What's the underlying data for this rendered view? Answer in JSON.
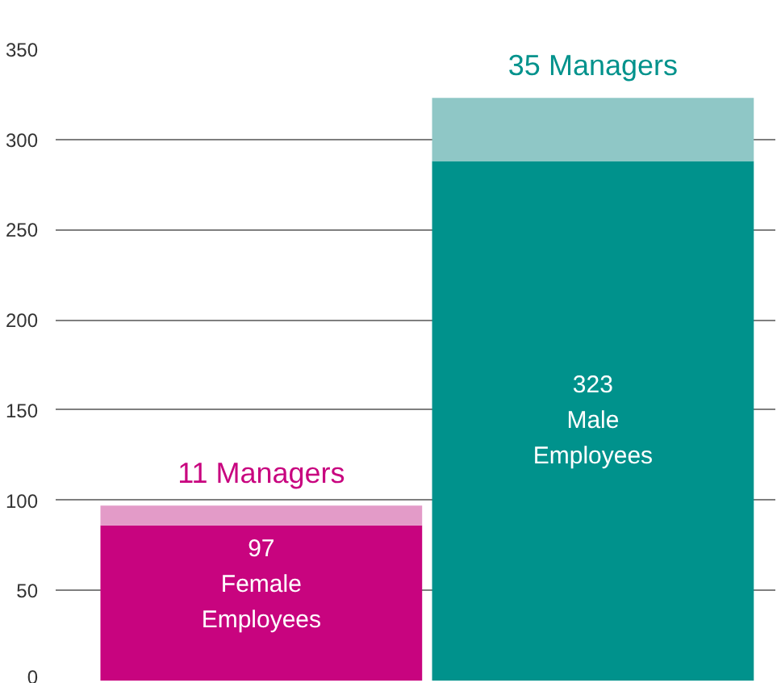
{
  "chart_data": {
    "type": "bar",
    "stacked": true,
    "categories": [
      "Female Employees",
      "Male Employees"
    ],
    "series": [
      {
        "colors": [
          "#c8047f",
          "#00928c"
        ],
        "values": [
          86,
          288
        ]
      },
      {
        "colors": [
          "#e39bc8",
          "#8fc7c6"
        ],
        "values": [
          11,
          35
        ],
        "value_labels": [
          "11 Managers",
          "35 Managers"
        ]
      }
    ],
    "totals": [
      "97",
      "323"
    ],
    "ylim": [
      0,
      350
    ],
    "yticks": [
      0,
      50,
      100,
      150,
      200,
      250,
      300,
      350
    ],
    "grid": "y",
    "tick_labels": "y"
  }
}
